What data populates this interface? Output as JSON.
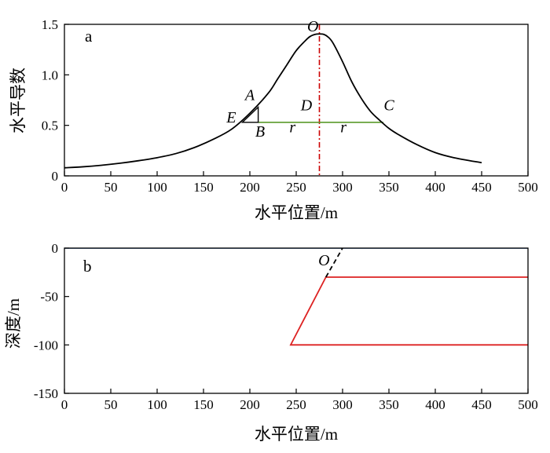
{
  "chart_data": [
    {
      "type": "line",
      "panel_label": "a",
      "xlabel": "水平位置/m",
      "ylabel": "水平导数",
      "xlim": [
        0,
        500
      ],
      "ylim": [
        0,
        1.5
      ],
      "xticks": [
        0,
        50,
        100,
        150,
        200,
        250,
        300,
        350,
        400,
        450,
        500
      ],
      "xtick_labels": [
        "0",
        "50",
        "100",
        "150",
        "200",
        "250",
        "300",
        "350",
        "400",
        "450",
        "500"
      ],
      "yticks": [
        0,
        0.5,
        1.0,
        1.5
      ],
      "ytick_labels": [
        "0",
        "0.5",
        "1.0",
        "1.5"
      ],
      "grid": false,
      "series": [
        {
          "color": "#000000",
          "x": [
            0,
            20,
            40,
            60,
            80,
            100,
            120,
            140,
            160,
            180,
            200,
            220,
            230,
            240,
            250,
            260,
            265,
            270,
            275,
            280,
            285,
            290,
            300,
            310,
            320,
            330,
            340,
            350,
            360,
            380,
            400,
            420,
            450
          ],
          "y": [
            0.08,
            0.09,
            0.105,
            0.125,
            0.15,
            0.18,
            0.22,
            0.28,
            0.36,
            0.46,
            0.62,
            0.82,
            0.96,
            1.1,
            1.24,
            1.34,
            1.38,
            1.4,
            1.405,
            1.4,
            1.37,
            1.31,
            1.13,
            0.93,
            0.77,
            0.64,
            0.55,
            0.47,
            0.41,
            0.31,
            0.23,
            0.18,
            0.13
          ]
        }
      ],
      "reference_lines": [
        {
          "kind": "vertical",
          "x": 275,
          "color": "#cc0000",
          "style": "dash-dot"
        },
        {
          "kind": "horizontal",
          "x_from": 209,
          "x_to": 344,
          "y": 0.53,
          "color": "#5a9a2a"
        }
      ],
      "triangle": {
        "color": "#000000",
        "vertices": [
          [
            192,
            0.53
          ],
          [
            209,
            0.53
          ],
          [
            209,
            0.68
          ]
        ]
      },
      "annotations": [
        {
          "text": "O",
          "x": 268,
          "y": 1.43
        },
        {
          "text": "A",
          "x": 200,
          "y": 0.75
        },
        {
          "text": "E",
          "x": 180,
          "y": 0.53
        },
        {
          "text": "B",
          "x": 211,
          "y": 0.39
        },
        {
          "text": "D",
          "x": 261,
          "y": 0.65
        },
        {
          "text": "C",
          "x": 350,
          "y": 0.65
        },
        {
          "text": "r",
          "x": 246,
          "y": 0.43
        },
        {
          "text": "r",
          "x": 301,
          "y": 0.43
        }
      ]
    },
    {
      "type": "line",
      "panel_label": "b",
      "xlabel": "水平位置/m",
      "ylabel": "深度/m",
      "xlim": [
        0,
        500
      ],
      "ylim": [
        -150,
        0
      ],
      "xticks": [
        0,
        50,
        100,
        150,
        200,
        250,
        300,
        350,
        400,
        450,
        500
      ],
      "xtick_labels": [
        "0",
        "50",
        "100",
        "150",
        "200",
        "250",
        "300",
        "350",
        "400",
        "450",
        "500"
      ],
      "yticks": [
        0,
        -50,
        -100,
        -150
      ],
      "ytick_labels": [
        "0",
        "-50",
        "-100",
        "-150"
      ],
      "grid": false,
      "series": [
        {
          "color": "#4a78b8",
          "x": [
            0,
            500
          ],
          "y": [
            0,
            0
          ]
        },
        {
          "color": "#dd2222",
          "x": [
            500,
            282,
            244,
            500
          ],
          "y": [
            -30,
            -30,
            -100,
            -100
          ]
        },
        {
          "color": "#000000",
          "style": "dashed",
          "x": [
            282,
            300
          ],
          "y": [
            -30,
            0
          ]
        }
      ],
      "annotations": [
        {
          "text": "O",
          "x": 280,
          "y": -18
        }
      ]
    }
  ]
}
